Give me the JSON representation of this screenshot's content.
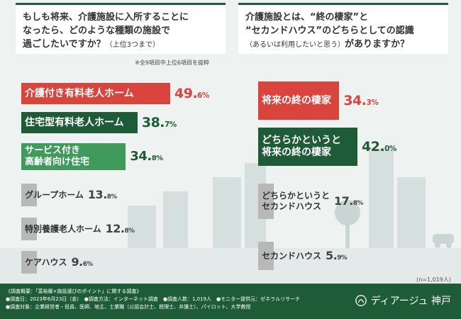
{
  "left_question": {
    "lines": [
      "もしも将来、介護施設に入所することに",
      "なったら、どのような種類の施設で"
    ],
    "line3_main": "過ごしたいですか？",
    "line3_small": "（上位3つまで）"
  },
  "note": "※全9項目中上位6項目を抜粋",
  "right_question": {
    "line1": "介護施設とは、“終の棲家”と",
    "line2": "“セカンドハウス”のどちらとしての認識",
    "line3_small": "（あるいは利用したいと思う）",
    "line3_main": "がありますか？"
  },
  "sample_size": "(n=1,019人)",
  "colors": {
    "red": "#d9453c",
    "dark_green": "#1e5c38",
    "light_green": "#3f9a5c",
    "gray": "#b8b8b8",
    "val_red": "#d9453c",
    "val_green": "#1e5c38",
    "val_gray": "#444444"
  },
  "chart_data": [
    {
      "type": "bar",
      "title": "もしも将来、介護施設に入所することになったら、どのような種類の施設で過ごしたいですか？（上位3つまで）",
      "unit": "%",
      "categories": [
        "介護付き有料老人ホーム",
        "住宅型有料老人ホーム",
        "サービス付き高齢者向け住宅",
        "グループホーム",
        "特別養護老人ホーム",
        "ケアハウス"
      ],
      "values": [
        49.6,
        38.7,
        34.8,
        13.8,
        12.8,
        9.6
      ],
      "value_labels": [
        [
          "49.",
          "6%"
        ],
        [
          "38.",
          "7%"
        ],
        [
          "34.",
          "8%"
        ],
        [
          "13.",
          "8%"
        ],
        [
          "12.",
          "8%"
        ],
        [
          "9.",
          "6%"
        ]
      ],
      "label_lines": [
        [
          "介護付き有料老人ホーム"
        ],
        [
          "住宅型有料老人ホーム"
        ],
        [
          "サービス付き",
          "高齢者向け住宅"
        ],
        [
          "グループホーム"
        ],
        [
          "特別養護老人ホーム"
        ],
        [
          "ケアハウス"
        ]
      ],
      "styles": [
        "red",
        "dark_green",
        "light_green",
        "gray",
        "gray",
        "gray"
      ]
    },
    {
      "type": "bar",
      "title": "介護施設とは、“終の棲家”と“セカンドハウス”のどちらとしての認識（あるいは利用したいと思う）がありますか？",
      "unit": "%",
      "categories": [
        "将来の終の棲家",
        "どちらかというと将来の終の棲家",
        "どちらかというとセカンドハウス",
        "セカンドハウス"
      ],
      "values": [
        34.3,
        42.0,
        17.8,
        5.9
      ],
      "value_labels": [
        [
          "34.",
          "3%"
        ],
        [
          "42.",
          "0%"
        ],
        [
          "17.",
          "8%"
        ],
        [
          "5.",
          "9%"
        ]
      ],
      "label_lines": [
        [
          "将来の終の棲家"
        ],
        [
          "どちらかというと",
          "将来の終の棲家"
        ],
        [
          "どちらかというと",
          "セカンドハウス"
        ],
        [
          "セカンドハウス"
        ]
      ],
      "styles": [
        "red",
        "dark_green",
        "gray",
        "gray"
      ]
    }
  ],
  "footer": {
    "lines": [
      "《調査概要：「富裕層×施設選びのポイント」に関する調査》",
      "●調査日：2023年6月23日（金）　●調査方法：インターネット調査　●調査人数：1,019人　●モニター提供元：ゼネラルリサーチ",
      "●調査対象：企業経営者・役員、医師、地主、士業職（公認会計士、税理士、弁護士）、パイロット、大学教授"
    ],
    "brand": "ディアージュ 神戸"
  }
}
